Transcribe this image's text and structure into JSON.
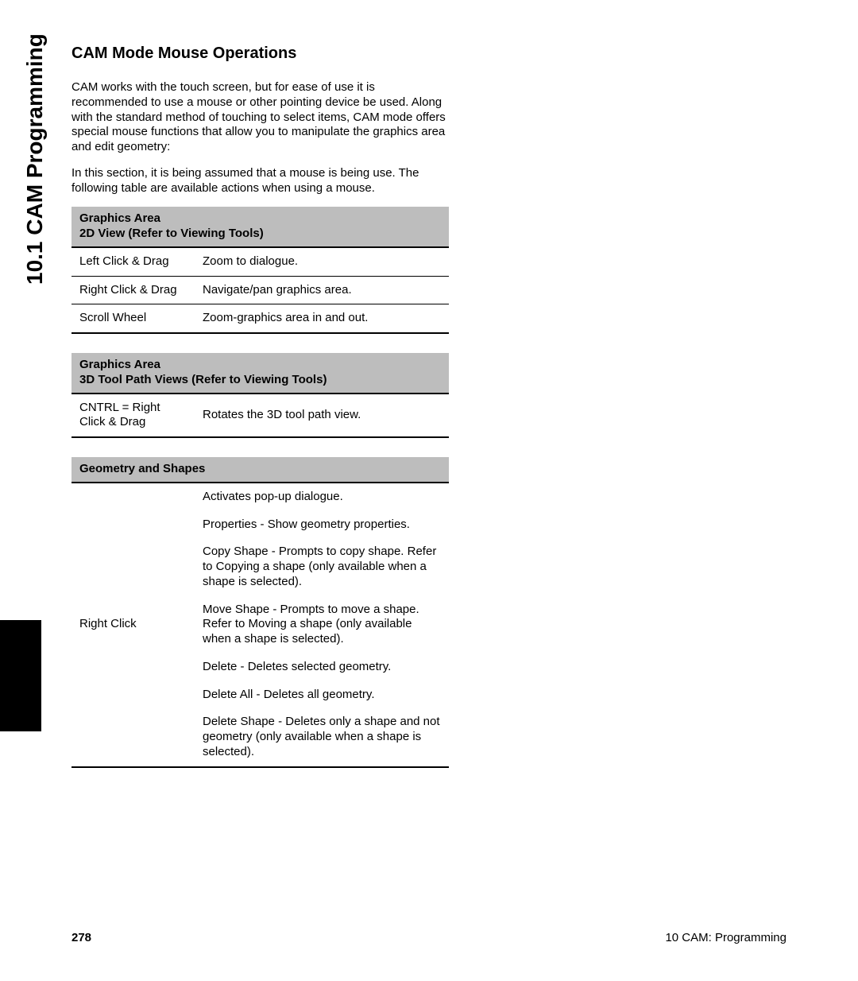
{
  "side_title": "10.1 CAM Programming",
  "section_title": "CAM Mode Mouse Operations",
  "para1": "CAM works with the touch screen, but for ease of use it is recommended to use a mouse or other pointing device be used. Along with the standard method of touching to select items, CAM mode offers special mouse functions that allow you to manipulate the graphics area and edit geometry:",
  "para2": "In this section, it is being assumed that a mouse is being use.  The following table are available actions when using a mouse.",
  "table1": {
    "header_l1": "Graphics Area",
    "header_l2": "2D View (Refer to Viewing Tools)",
    "rows": [
      {
        "action": "Left Click & Drag",
        "desc": "Zoom to dialogue."
      },
      {
        "action": "Right Click & Drag",
        "desc": "Navigate/pan graphics area."
      },
      {
        "action": "Scroll Wheel",
        "desc": "Zoom-graphics area in and out."
      }
    ]
  },
  "table2": {
    "header_l1": "Graphics Area",
    "header_l2": "3D Tool Path Views (Refer to Viewing Tools)",
    "rows": [
      {
        "action": "CNTRL = Right Click & Drag",
        "desc": "Rotates the 3D tool path view."
      }
    ]
  },
  "table3": {
    "header": "Geometry and Shapes",
    "action": "Right Click",
    "items": [
      "Activates pop-up dialogue.",
      "Properties - Show geometry properties.",
      "Copy Shape - Prompts to copy shape. Refer to Copying a shape (only available when a shape is selected).",
      "Move Shape - Prompts to move a shape. Refer to Moving a shape (only available when a shape is selected).",
      "Delete - Deletes selected geometry.",
      "Delete All - Deletes all geometry.",
      "Delete Shape - Deletes only a shape and not geometry (only available when a shape is selected)."
    ]
  },
  "footer": {
    "page_number": "278",
    "chapter": "10 CAM: Programming"
  },
  "colors": {
    "header_bg": "#bdbdbd",
    "border": "#000000",
    "tab_bg": "#000000",
    "page_bg": "#ffffff"
  },
  "typography": {
    "side_title_fontsize_pt": 21,
    "section_title_fontsize_pt": 15,
    "body_fontsize_pt": 11
  }
}
